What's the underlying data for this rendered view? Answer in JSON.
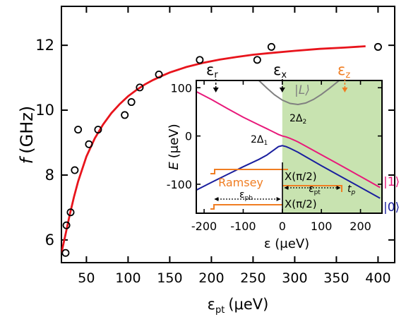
{
  "chart_data": [
    {
      "type": "scatter",
      "xlabel": "ε",
      "xlabel_sub": "pt",
      "xlabel_unit": "(μeV)",
      "ylabel_italic": "f",
      "ylabel_unit": "(GHz)",
      "xlim": [
        20,
        420
      ],
      "ylim": [
        5.3,
        13.2
      ],
      "xticks": [
        50,
        100,
        150,
        200,
        250,
        300,
        350,
        400
      ],
      "xtick_labels": [
        "50",
        "100",
        "150",
        "200",
        "250",
        "300",
        "350",
        "400"
      ],
      "yticks": [
        6,
        8,
        10,
        12
      ],
      "ytick_labels": [
        "6",
        "8",
        "10",
        "12"
      ],
      "grid": false,
      "legend": "none",
      "colors": {
        "points": "#000000",
        "fit": "#e8141c"
      },
      "series": [
        {
          "kind": "points",
          "x": [
            25,
            26,
            31,
            36,
            40,
            53,
            64,
            96,
            104,
            114,
            137,
            186,
            255,
            272,
            400
          ],
          "y": [
            5.6,
            6.45,
            6.85,
            8.15,
            9.4,
            8.95,
            9.4,
            9.85,
            10.25,
            10.7,
            11.1,
            11.55,
            11.55,
            11.95,
            11.95
          ]
        },
        {
          "kind": "fit",
          "x": [
            20,
            25,
            30,
            35,
            40,
            50,
            60,
            70,
            80,
            90,
            100,
            110,
            120,
            130,
            140,
            150,
            170,
            190,
            210,
            230,
            250,
            270,
            300,
            330,
            360,
            385
          ],
          "y": [
            5.6,
            6.18,
            6.78,
            7.32,
            7.8,
            8.57,
            9.13,
            9.56,
            9.91,
            10.19,
            10.43,
            10.62,
            10.79,
            10.93,
            11.05,
            11.16,
            11.33,
            11.46,
            11.56,
            11.64,
            11.71,
            11.76,
            11.83,
            11.89,
            11.93,
            11.97
          ]
        }
      ]
    },
    {
      "type": "line",
      "xlabel": "ε (μeV)",
      "ylabel_italic": "E",
      "ylabel_unit": "(μeV)",
      "xlim": [
        -220,
        255
      ],
      "ylim": [
        -160,
        115
      ],
      "xticks": [
        -200,
        -100,
        0,
        100,
        200
      ],
      "xtick_labels": [
        "-200",
        "-100",
        "0",
        "100",
        "200"
      ],
      "yticks": [
        -100,
        0,
        100
      ],
      "ytick_labels": [
        "-100",
        "0",
        "100"
      ],
      "grid": false,
      "shaded_region_x": [
        0,
        255
      ],
      "colors": {
        "shade": "#c8e3b0",
        "L": "#808080",
        "one": "#e8197a",
        "zero": "#1a1f9e",
        "pulse": "#f07d22",
        "dashed": "#000000"
      },
      "series": [
        {
          "name": "|L⟩",
          "x": [
            -60,
            -40,
            -20,
            0,
            20,
            40,
            60,
            80,
            100,
            120,
            140,
            160,
            200,
            230
          ],
          "y": [
            115,
            99.6,
            85.4,
            74.4,
            67.4,
            65.3,
            68.4,
            75.8,
            86.2,
            98.4,
            111.4,
            124.8,
            152.4,
            175.2
          ]
        },
        {
          "name": "|1⟩",
          "x": [
            -220,
            -180,
            -140,
            -100,
            -60,
            -40,
            -20,
            -10,
            0,
            10,
            20,
            30,
            40,
            60,
            100,
            140,
            180,
            220,
            250
          ],
          "y": [
            92,
            75,
            56.7,
            38.9,
            23.0,
            15.3,
            7.4,
            3.2,
            0.0,
            -1.9,
            -4.9,
            -8.5,
            -12.3,
            -21.1,
            -39.0,
            -56.8,
            -74.8,
            -92.8,
            -106.6
          ]
        },
        {
          "name": "|0⟩",
          "x": [
            -220,
            -180,
            -140,
            -100,
            -60,
            -40,
            -20,
            -10,
            0,
            10,
            20,
            40,
            60,
            100,
            140,
            180,
            220,
            250
          ],
          "y": [
            -112,
            -95.6,
            -79.5,
            -63.8,
            -48.5,
            -39.8,
            -28.1,
            -22.0,
            -20.0,
            -22.0,
            -25.5,
            -33.6,
            -43.0,
            -61.5,
            -79.6,
            -97.5,
            -115.4,
            -128.9
          ]
        }
      ],
      "annotations": {
        "epsilon_r": {
          "base": "ε",
          "sub": "r",
          "x": -170
        },
        "epsilon_x": {
          "base": "ε",
          "sub": "x",
          "x": 0
        },
        "epsilon_z": {
          "base": "ε",
          "sub": "z",
          "x": 160
        },
        "gap_2": {
          "text": "2Δ",
          "sub": "2"
        },
        "gap_1": {
          "text": "2Δ",
          "sub": "1"
        },
        "ket_L": "|L⟩",
        "ket_1": "|1⟩",
        "ket_0": "|0⟩",
        "ramsey": "Ramsey",
        "pulse_top": "X(π/2)",
        "pulse_bottom": "X(π/2)",
        "eps_pb": {
          "base": "ε",
          "sub": "pb"
        },
        "eps_pt": {
          "base": "ε",
          "sub": "pt"
        },
        "t_p": {
          "base": "t",
          "sub": "p"
        }
      }
    }
  ]
}
